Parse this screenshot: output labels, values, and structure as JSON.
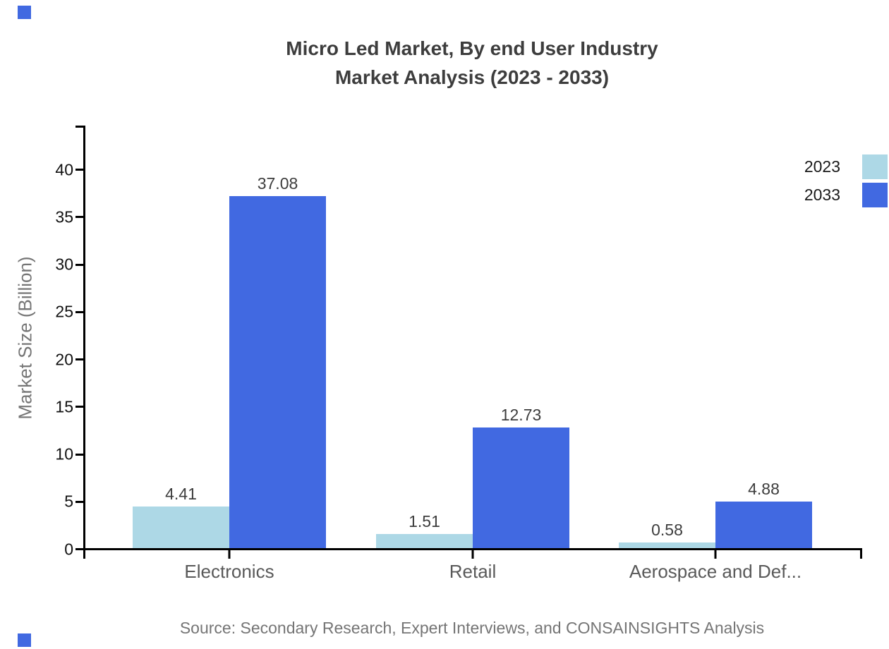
{
  "title": {
    "line1": "Micro Led Market, By end User Industry",
    "line2": "Market Analysis (2023 - 2033)"
  },
  "y_axis": {
    "label": "Market Size (Billion)"
  },
  "legend": {
    "items": [
      {
        "label": "2023",
        "color": "#ADD8E6"
      },
      {
        "label": "2033",
        "color": "#4169E1"
      }
    ]
  },
  "source": "Source: Secondary Research, Expert Interviews, and CONSAINSIGHTS Analysis",
  "colors": {
    "accent": "#4169E1",
    "axis": "#000000"
  },
  "chart_data": {
    "type": "bar",
    "title": "Micro Led Market, By end User Industry Market Analysis (2023 - 2033)",
    "categories": [
      "Electronics",
      "Retail",
      "Aerospace and Def..."
    ],
    "series": [
      {
        "name": "2023",
        "color": "#ADD8E6",
        "values": [
          4.41,
          1.51,
          0.58
        ]
      },
      {
        "name": "2033",
        "color": "#4169E1",
        "values": [
          37.08,
          12.73,
          4.88
        ]
      }
    ],
    "xlabel": "",
    "ylabel": "Market Size (Billion)",
    "yticks": [
      0,
      5,
      10,
      15,
      20,
      25,
      30,
      35,
      40
    ],
    "ylim": [
      0,
      44.8
    ],
    "grid": false,
    "legend_position": "top-right",
    "value_labels": true
  }
}
